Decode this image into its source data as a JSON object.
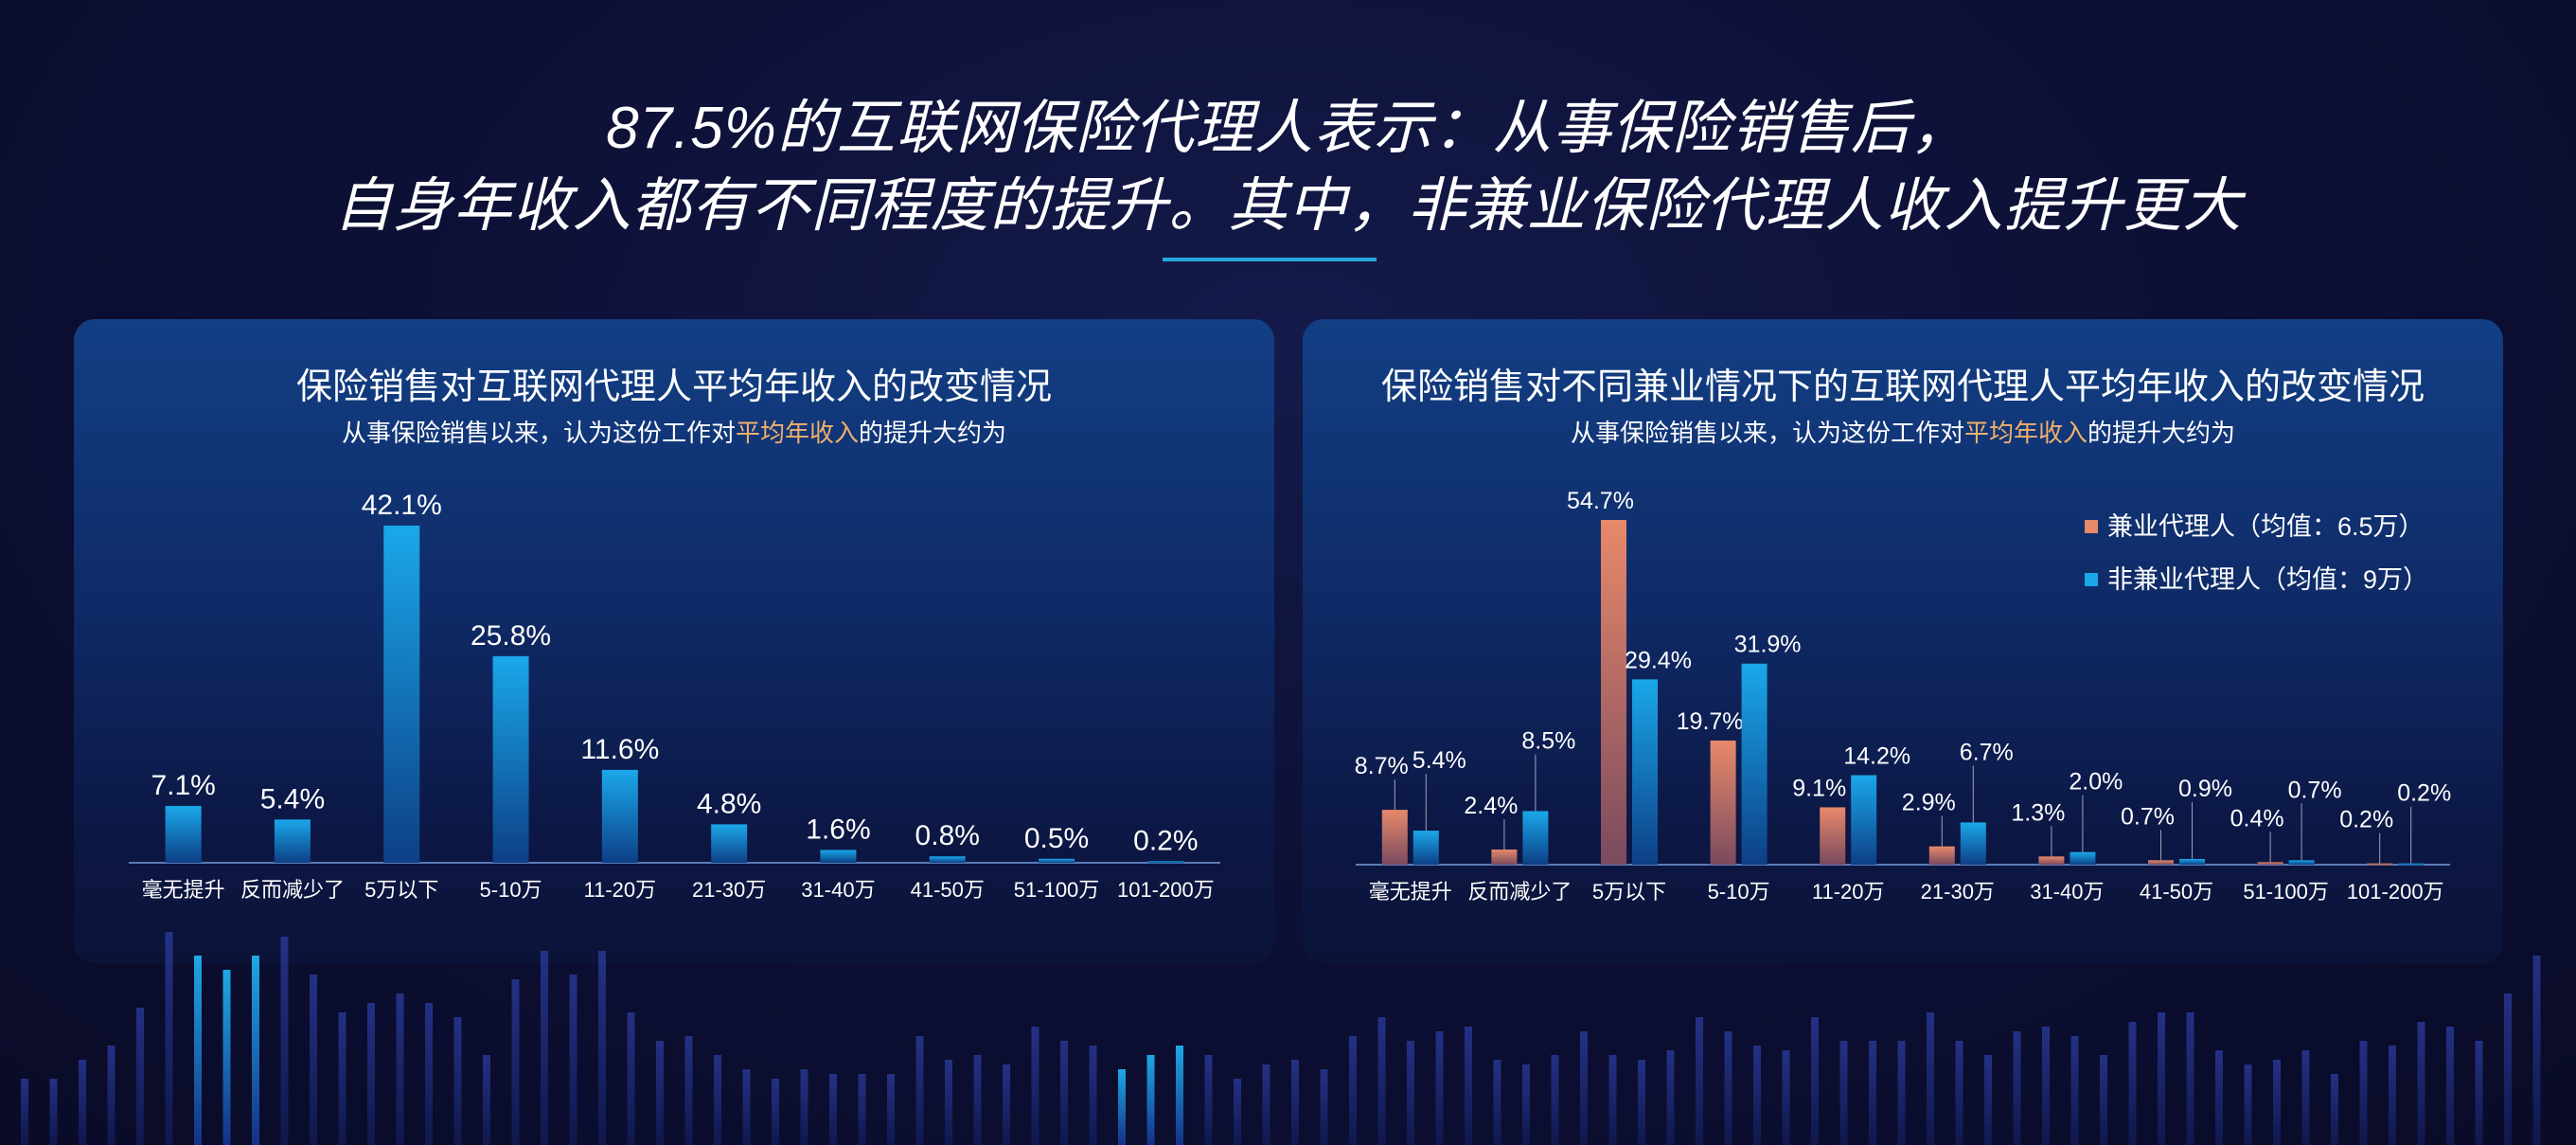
{
  "headline": {
    "line1": "87.5%的互联网保险代理人表示：从事保险销售后，",
    "line2": "自身年收入都有不同程度的提升。其中，非兼业保险代理人收入提升更大"
  },
  "colors": {
    "blue_bar": "#1aa8ea",
    "orange_bar": "#e8896a",
    "highlight_text": "#f2b06a",
    "accent_line": "#27a6e0"
  },
  "chart_data": [
    {
      "type": "bar",
      "title": "保险销售对互联网代理人平均年收入的改变情况",
      "subtitle_pre": "从事保险销售以来，认为这份工作对",
      "subtitle_highlight": "平均年收入",
      "subtitle_post": "的提升大约为",
      "categories": [
        "毫无提升",
        "反而减少了",
        "5万以下",
        "5-10万",
        "11-20万",
        "21-30万",
        "31-40万",
        "41-50万",
        "51-100万",
        "101-200万"
      ],
      "values": [
        7.1,
        5.4,
        42.1,
        25.8,
        11.6,
        4.8,
        1.6,
        0.8,
        0.5,
        0.2
      ],
      "value_labels": [
        "7.1%",
        "5.4%",
        "42.1%",
        "25.8%",
        "11.6%",
        "4.8%",
        "1.6%",
        "0.8%",
        "0.5%",
        "0.2%"
      ],
      "ylim": [
        0,
        42.1
      ],
      "grid": false
    },
    {
      "type": "bar",
      "title": "保险销售对不同兼业情况下的互联网代理人平均年收入的改变情况",
      "subtitle_pre": "从事保险销售以来，认为这份工作对",
      "subtitle_highlight": "平均年收入",
      "subtitle_post": "的提升大约为",
      "categories": [
        "毫无提升",
        "反而减少了",
        "5万以下",
        "5-10万",
        "11-20万",
        "21-30万",
        "31-40万",
        "41-50万",
        "51-100万",
        "101-200万"
      ],
      "series": [
        {
          "name": "兼业代理人（均值：6.5万）",
          "color": "#e8896a",
          "values": [
            8.7,
            2.4,
            54.7,
            19.7,
            9.1,
            2.9,
            1.3,
            0.7,
            0.4,
            0.2
          ],
          "value_labels": [
            "8.7%",
            "2.4%",
            "54.7%",
            "19.7%",
            "9.1%",
            "2.9%",
            "1.3%",
            "0.7%",
            "0.4%",
            "0.2%"
          ]
        },
        {
          "name": "非兼业代理人（均值：9万）",
          "color": "#1aa8ea",
          "values": [
            5.4,
            8.5,
            29.4,
            31.9,
            14.2,
            6.7,
            2.0,
            0.9,
            0.7,
            0.2
          ],
          "value_labels": [
            "5.4%",
            "8.5%",
            "29.4%",
            "31.9%",
            "14.2%",
            "6.7%",
            "2.0%",
            "0.9%",
            "0.7%",
            "0.2%"
          ]
        }
      ],
      "ylim": [
        0,
        54.7
      ],
      "legend": "top-right",
      "grid": false
    }
  ]
}
